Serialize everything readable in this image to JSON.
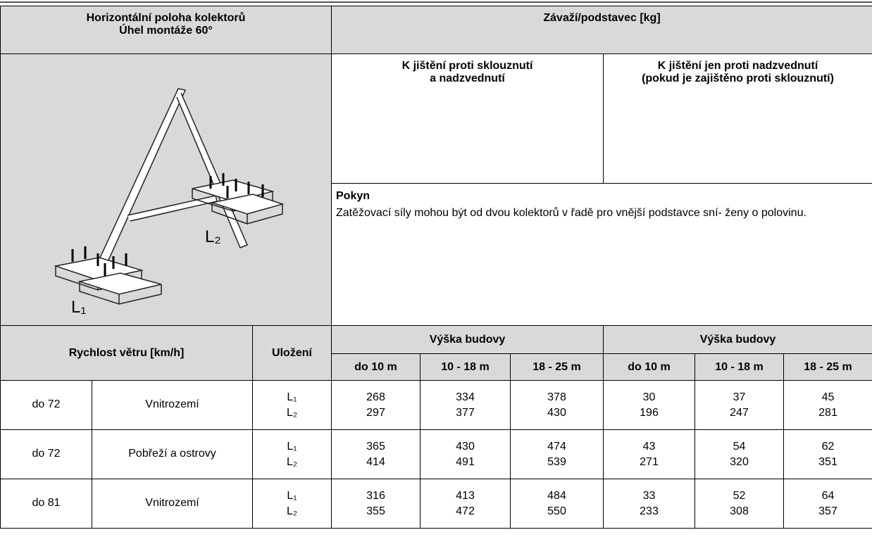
{
  "header": {
    "left_title": [
      "Horizontální poloha kolektorů",
      "Úhel montáže 60°"
    ],
    "right_title": "Závaží/podstavec [kg]"
  },
  "columns": {
    "slide": [
      "K jištění proti sklouznutí",
      "a nadzvednutí"
    ],
    "lift": [
      "K jištění jen proti nadzvednutí",
      "(pokud je zajištěno proti sklouznutí)"
    ]
  },
  "note": {
    "title": "Pokyn",
    "text": "Zatěžovací síly mohou být od dvou kolektorů v řadě pro vnější podstavce sní- ženy o polovinu."
  },
  "figure": {
    "labels": [
      "L₁",
      "L₂"
    ]
  },
  "table": {
    "wind_header": "Rychlost větru [km/h]",
    "placement_header": "Uložení",
    "group_headers": [
      "Výška budovy",
      "Výška budovy"
    ],
    "height_headers": [
      "do 10 m",
      "10 - 18 m",
      "18 - 25 m",
      "do 10 m",
      "10 - 18 m",
      "18 - 25 m"
    ],
    "rows": [
      {
        "wind": "do 72",
        "region": "Vnitrozemí",
        "placements": [
          "L₁",
          "L₂"
        ],
        "values": [
          [
            268,
            334,
            378,
            30,
            37,
            45
          ],
          [
            297,
            377,
            430,
            196,
            247,
            281
          ]
        ]
      },
      {
        "wind": "do 72",
        "region": "Pobřeží a ostrovy",
        "placements": [
          "L₁",
          "L₂"
        ],
        "values": [
          [
            365,
            430,
            474,
            43,
            54,
            62
          ],
          [
            414,
            491,
            539,
            271,
            320,
            351
          ]
        ]
      },
      {
        "wind": "do 81",
        "region": "Vnitrozemí",
        "placements": [
          "L₁",
          "L₂"
        ],
        "values": [
          [
            316,
            413,
            484,
            33,
            52,
            64
          ],
          [
            355,
            472,
            550,
            233,
            308,
            357
          ]
        ]
      }
    ]
  }
}
